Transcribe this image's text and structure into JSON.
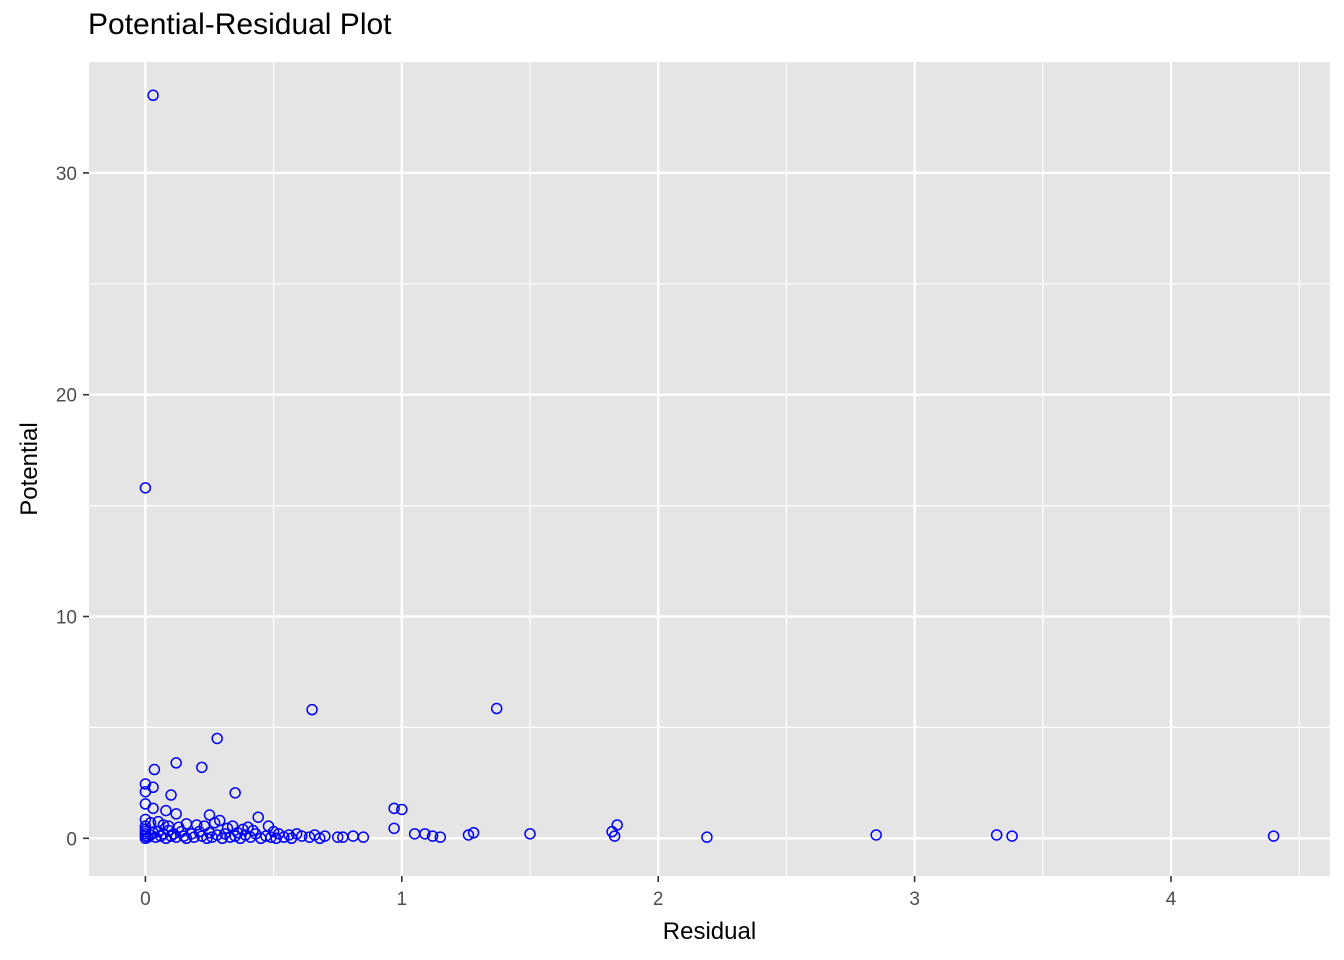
{
  "chart_data": {
    "type": "scatter",
    "title": "Potential-Residual Plot",
    "xlabel": "Residual",
    "ylabel": "Potential",
    "xlim": [
      -0.22,
      4.62
    ],
    "ylim": [
      -1.7,
      35.0
    ],
    "x_ticks": [
      0,
      1,
      2,
      3,
      4
    ],
    "y_ticks": [
      0,
      10,
      20,
      30
    ],
    "x_tick_labels": [
      "0",
      "1",
      "2",
      "3",
      "4"
    ],
    "y_tick_labels": [
      "0",
      "10",
      "20",
      "30"
    ],
    "grid": true,
    "legend": "none",
    "background_color": "#E5E5E5",
    "grid_color": "#FFFFFF",
    "point_color": "#0000FF",
    "marker": "open-circle",
    "series": [
      {
        "points": [
          [
            0.03,
            33.5
          ],
          [
            0.0,
            15.8
          ],
          [
            0.65,
            5.8
          ],
          [
            1.37,
            5.85
          ],
          [
            0.28,
            4.5
          ],
          [
            0.12,
            3.4
          ],
          [
            0.22,
            3.2
          ],
          [
            0.035,
            3.1
          ],
          [
            0.0,
            2.45
          ],
          [
            0.03,
            2.3
          ],
          [
            0.0,
            2.1
          ],
          [
            0.35,
            2.05
          ],
          [
            0.1,
            1.95
          ],
          [
            0.0,
            1.55
          ],
          [
            0.03,
            1.35
          ],
          [
            0.08,
            1.25
          ],
          [
            0.12,
            1.1
          ],
          [
            0.25,
            1.05
          ],
          [
            0.44,
            0.95
          ],
          [
            0.97,
            1.35
          ],
          [
            1.0,
            1.3
          ],
          [
            0.97,
            0.45
          ],
          [
            1.84,
            0.6
          ],
          [
            1.82,
            0.3
          ],
          [
            1.83,
            0.1
          ],
          [
            0.0,
            0.85
          ],
          [
            0.02,
            0.7
          ],
          [
            0.05,
            0.75
          ],
          [
            0.07,
            0.6
          ],
          [
            0.09,
            0.55
          ],
          [
            0.13,
            0.5
          ],
          [
            0.16,
            0.65
          ],
          [
            0.2,
            0.6
          ],
          [
            0.23,
            0.55
          ],
          [
            0.27,
            0.7
          ],
          [
            0.29,
            0.8
          ],
          [
            0.32,
            0.45
          ],
          [
            0.34,
            0.55
          ],
          [
            0.38,
            0.4
          ],
          [
            0.4,
            0.5
          ],
          [
            0.42,
            0.35
          ],
          [
            0.48,
            0.55
          ],
          [
            0.5,
            0.3
          ],
          [
            0.52,
            0.2
          ],
          [
            0.56,
            0.15
          ],
          [
            0.59,
            0.2
          ],
          [
            0.61,
            0.1
          ],
          [
            0.64,
            0.05
          ],
          [
            0.66,
            0.15
          ],
          [
            0.68,
            0.0
          ],
          [
            0.7,
            0.1
          ],
          [
            0.75,
            0.05
          ],
          [
            0.77,
            0.05
          ],
          [
            0.81,
            0.1
          ],
          [
            0.85,
            0.05
          ],
          [
            1.05,
            0.2
          ],
          [
            1.09,
            0.2
          ],
          [
            1.12,
            0.1
          ],
          [
            1.15,
            0.05
          ],
          [
            1.26,
            0.15
          ],
          [
            1.28,
            0.25
          ],
          [
            1.5,
            0.2
          ],
          [
            2.19,
            0.05
          ],
          [
            2.85,
            0.15
          ],
          [
            3.32,
            0.15
          ],
          [
            3.38,
            0.1
          ],
          [
            4.4,
            0.1
          ],
          [
            0.0,
            0.0
          ],
          [
            0.0,
            0.1
          ],
          [
            0.0,
            0.2
          ],
          [
            0.0,
            0.3
          ],
          [
            0.0,
            0.4
          ],
          [
            0.0,
            0.55
          ],
          [
            0.01,
            0.05
          ],
          [
            0.02,
            0.15
          ],
          [
            0.03,
            0.25
          ],
          [
            0.04,
            0.05
          ],
          [
            0.05,
            0.3
          ],
          [
            0.06,
            0.1
          ],
          [
            0.07,
            0.2
          ],
          [
            0.08,
            0.0
          ],
          [
            0.09,
            0.35
          ],
          [
            0.1,
            0.1
          ],
          [
            0.11,
            0.2
          ],
          [
            0.12,
            0.05
          ],
          [
            0.14,
            0.3
          ],
          [
            0.15,
            0.1
          ],
          [
            0.16,
            0.0
          ],
          [
            0.18,
            0.2
          ],
          [
            0.19,
            0.05
          ],
          [
            0.21,
            0.3
          ],
          [
            0.22,
            0.1
          ],
          [
            0.24,
            0.0
          ],
          [
            0.25,
            0.25
          ],
          [
            0.26,
            0.05
          ],
          [
            0.28,
            0.15
          ],
          [
            0.3,
            0.0
          ],
          [
            0.31,
            0.2
          ],
          [
            0.33,
            0.05
          ],
          [
            0.35,
            0.1
          ],
          [
            0.36,
            0.25
          ],
          [
            0.37,
            0.0
          ],
          [
            0.39,
            0.15
          ],
          [
            0.41,
            0.05
          ],
          [
            0.43,
            0.2
          ],
          [
            0.45,
            0.0
          ],
          [
            0.47,
            0.1
          ],
          [
            0.49,
            0.05
          ],
          [
            0.51,
            0.0
          ],
          [
            0.54,
            0.05
          ],
          [
            0.57,
            0.0
          ]
        ]
      }
    ]
  }
}
